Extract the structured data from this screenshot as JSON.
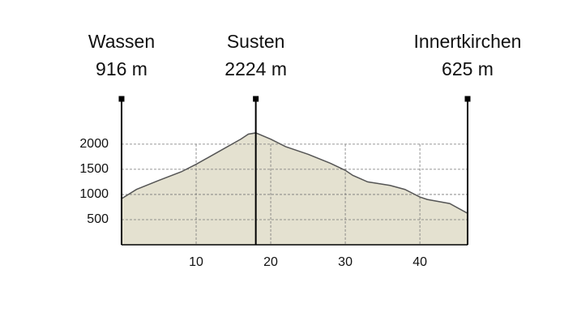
{
  "chart_data": {
    "type": "area",
    "x": [
      0,
      2,
      5,
      8,
      10,
      13,
      16,
      17,
      18,
      20,
      22,
      25,
      28,
      30,
      31,
      33,
      36,
      38,
      40,
      41,
      44,
      46.4
    ],
    "values": [
      916,
      1100,
      1280,
      1450,
      1600,
      1850,
      2100,
      2200,
      2224,
      2100,
      1950,
      1800,
      1620,
      1480,
      1380,
      1250,
      1180,
      1100,
      950,
      900,
      820,
      625
    ],
    "color": "#e4e1d0",
    "line_color": "#555555",
    "xlim": [
      0,
      46.4
    ],
    "ylim": [
      0,
      2900
    ],
    "xticks": [
      10,
      20,
      30,
      40
    ],
    "yticks": [
      500,
      1000,
      1500,
      2000
    ],
    "grid": true,
    "markers": [
      {
        "x": 0,
        "name": "Wassen",
        "elevation": "916 m"
      },
      {
        "x": 18,
        "name": "Susten",
        "elevation": "2224 m"
      },
      {
        "x": 46.4,
        "name": "Innertkirchen",
        "elevation": "625 m"
      }
    ]
  }
}
